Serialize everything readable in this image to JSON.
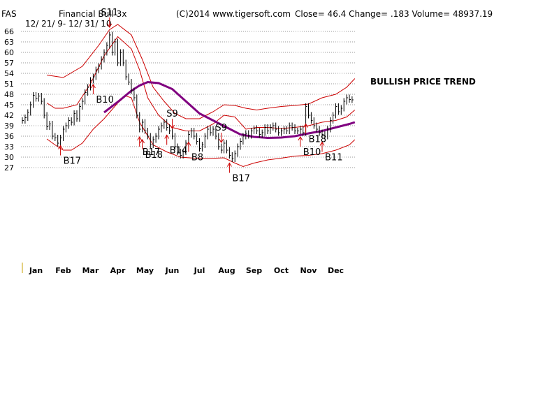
{
  "chart_data": {
    "type": "line",
    "title": "Financial Bull 3x",
    "symbol": "FAS",
    "date_range": "12/ 21/ 9- 12/ 31/ 10",
    "copyright": "(C)2014 www.tigersoft.com",
    "stats": "Close=  46.4  Change= .183 Volume= 48937.19",
    "trend_label": "BULLISH PRICE TREND",
    "ylim": [
      27,
      66
    ],
    "y_ticks": [
      {
        "v": 66,
        "label": "66"
      },
      {
        "v": 63,
        "label": "63"
      },
      {
        "v": 60,
        "label": "60"
      },
      {
        "v": 57,
        "label": "57"
      },
      {
        "v": 54,
        "label": "54"
      },
      {
        "v": 51,
        "label": "51"
      },
      {
        "v": 48,
        "label": "48"
      },
      {
        "v": 45,
        "label": "45"
      },
      {
        "v": 42,
        "label": "42"
      },
      {
        "v": 39,
        "label": "39"
      },
      {
        "v": 36,
        "label": "36"
      },
      {
        "v": 33,
        "label": "33"
      },
      {
        "v": 30,
        "label": "30"
      },
      {
        "v": 27,
        "label": "27"
      }
    ],
    "months": [
      {
        "label": "Jan",
        "x": 0.5
      },
      {
        "label": "Feb",
        "x": 1.5
      },
      {
        "label": "Mar",
        "x": 2.5
      },
      {
        "label": "Apr",
        "x": 3.5
      },
      {
        "label": "May",
        "x": 4.5
      },
      {
        "label": "Jun",
        "x": 5.5
      },
      {
        "label": "Jul",
        "x": 6.5
      },
      {
        "label": "Aug",
        "x": 7.5
      },
      {
        "label": "Sep",
        "x": 8.5
      },
      {
        "label": "Oct",
        "x": 9.5
      },
      {
        "label": "Nov",
        "x": 10.5
      },
      {
        "label": "Dec",
        "x": 11.5
      }
    ],
    "grid": true,
    "colors": {
      "price": "#000000",
      "band": "#cc0000",
      "ma": "#800080",
      "buy": "#cc0000",
      "sell": "#cc0000",
      "grid": "#999999"
    },
    "price": [
      [
        0,
        40.5
      ],
      [
        0.1,
        41.3
      ],
      [
        0.2,
        42.8
      ],
      [
        0.3,
        45
      ],
      [
        0.4,
        47.7
      ],
      [
        0.5,
        46.8
      ],
      [
        0.6,
        47.5
      ],
      [
        0.7,
        46
      ],
      [
        0.8,
        42
      ],
      [
        0.9,
        38.7
      ],
      [
        1.0,
        39.5
      ],
      [
        1.1,
        36
      ],
      [
        1.2,
        35.5
      ],
      [
        1.3,
        34
      ],
      [
        1.4,
        35.5
      ],
      [
        1.5,
        38
      ],
      [
        1.6,
        39
      ],
      [
        1.7,
        40.5
      ],
      [
        1.8,
        40
      ],
      [
        1.9,
        42.5
      ],
      [
        2.0,
        41
      ],
      [
        2.1,
        44.5
      ],
      [
        2.2,
        46
      ],
      [
        2.3,
        48.5
      ],
      [
        2.4,
        50
      ],
      [
        2.5,
        52
      ],
      [
        2.6,
        53
      ],
      [
        2.7,
        55
      ],
      [
        2.8,
        56
      ],
      [
        2.9,
        58
      ],
      [
        3.0,
        60
      ],
      [
        3.1,
        62
      ],
      [
        3.2,
        65
      ],
      [
        3.3,
        60
      ],
      [
        3.4,
        63
      ],
      [
        3.5,
        57
      ],
      [
        3.6,
        60
      ],
      [
        3.7,
        57
      ],
      [
        3.8,
        53
      ],
      [
        3.9,
        51.5
      ],
      [
        4.0,
        49
      ],
      [
        4.1,
        47
      ],
      [
        4.2,
        42
      ],
      [
        4.3,
        38
      ],
      [
        4.4,
        40
      ],
      [
        4.5,
        37.5
      ],
      [
        4.6,
        36
      ],
      [
        4.7,
        33.5
      ],
      [
        4.8,
        35
      ],
      [
        4.9,
        36
      ],
      [
        5.0,
        38
      ],
      [
        5.1,
        39
      ],
      [
        5.2,
        40
      ],
      [
        5.3,
        38.5
      ],
      [
        5.4,
        37.5
      ],
      [
        5.5,
        36
      ],
      [
        5.6,
        33
      ],
      [
        5.7,
        31.5
      ],
      [
        5.8,
        30.5
      ],
      [
        5.9,
        31.5
      ],
      [
        6.0,
        34
      ],
      [
        6.1,
        36.5
      ],
      [
        6.2,
        37.5
      ],
      [
        6.3,
        36
      ],
      [
        6.4,
        34.5
      ],
      [
        6.5,
        32.5
      ],
      [
        6.6,
        33.5
      ],
      [
        6.7,
        36
      ],
      [
        6.8,
        38
      ],
      [
        6.9,
        37
      ],
      [
        7.0,
        38
      ],
      [
        7.1,
        36
      ],
      [
        7.2,
        33
      ],
      [
        7.3,
        32
      ],
      [
        7.4,
        34
      ],
      [
        7.5,
        32
      ],
      [
        7.6,
        30.5
      ],
      [
        7.7,
        29.5
      ],
      [
        7.8,
        31
      ],
      [
        7.9,
        33
      ],
      [
        8.0,
        34.5
      ],
      [
        8.1,
        36
      ],
      [
        8.2,
        36.8
      ],
      [
        8.3,
        36.2
      ],
      [
        8.4,
        37.5
      ],
      [
        8.5,
        38.2
      ],
      [
        8.6,
        37.5
      ],
      [
        8.7,
        36.5
      ],
      [
        8.8,
        37
      ],
      [
        8.9,
        38.5
      ],
      [
        9.0,
        37.5
      ],
      [
        9.1,
        38.5
      ],
      [
        9.2,
        39
      ],
      [
        9.3,
        38
      ],
      [
        9.4,
        37
      ],
      [
        9.5,
        37.5
      ],
      [
        9.6,
        38
      ],
      [
        9.7,
        37.5
      ],
      [
        9.8,
        39
      ],
      [
        9.9,
        38.5
      ],
      [
        10.0,
        37.5
      ],
      [
        10.1,
        37.5
      ],
      [
        10.2,
        38
      ],
      [
        10.3,
        37
      ],
      [
        10.4,
        44.5
      ],
      [
        10.5,
        42
      ],
      [
        10.6,
        40.5
      ],
      [
        10.7,
        39
      ],
      [
        10.8,
        38
      ],
      [
        10.9,
        37
      ],
      [
        11.0,
        36.5
      ],
      [
        11.1,
        36
      ],
      [
        11.2,
        38
      ],
      [
        11.3,
        40.5
      ],
      [
        11.4,
        42
      ],
      [
        11.5,
        44.5
      ],
      [
        11.6,
        43
      ],
      [
        11.7,
        44
      ],
      [
        11.8,
        46
      ],
      [
        11.9,
        47
      ],
      [
        12.0,
        46.5
      ],
      [
        12.1,
        46.4
      ]
    ],
    "upper_band": [
      [
        0.9,
        53.5
      ],
      [
        1.5,
        52.8
      ],
      [
        2.2,
        56
      ],
      [
        2.8,
        62
      ],
      [
        3.2,
        66.5
      ],
      [
        3.5,
        68
      ],
      [
        4.0,
        65
      ],
      [
        4.4,
        58
      ],
      [
        4.8,
        50
      ],
      [
        5.2,
        46
      ],
      [
        5.6,
        42.5
      ],
      [
        6.0,
        41
      ],
      [
        6.5,
        41
      ],
      [
        7.0,
        43
      ],
      [
        7.4,
        45
      ],
      [
        7.8,
        44.8
      ],
      [
        8.2,
        44
      ],
      [
        8.6,
        43.5
      ],
      [
        9.0,
        44
      ],
      [
        9.5,
        44.5
      ],
      [
        10.0,
        44.8
      ],
      [
        10.5,
        45.2
      ],
      [
        11.0,
        47
      ],
      [
        11.5,
        48
      ],
      [
        11.9,
        50
      ],
      [
        12.2,
        52.5
      ]
    ],
    "mid_band": [
      [
        0.9,
        45.5
      ],
      [
        1.2,
        44
      ],
      [
        1.5,
        44
      ],
      [
        2.0,
        45
      ],
      [
        2.5,
        51
      ],
      [
        3.0,
        59
      ],
      [
        3.5,
        64.5
      ],
      [
        4.0,
        61
      ],
      [
        4.3,
        55
      ],
      [
        4.6,
        47
      ],
      [
        5.0,
        42
      ],
      [
        5.5,
        38.5
      ],
      [
        6.0,
        37.5
      ],
      [
        6.5,
        37.5
      ],
      [
        7.0,
        39.5
      ],
      [
        7.4,
        42
      ],
      [
        7.8,
        41.5
      ],
      [
        8.2,
        38
      ],
      [
        8.6,
        38.5
      ],
      [
        9.0,
        38.5
      ],
      [
        9.5,
        38.2
      ],
      [
        10.0,
        38.5
      ],
      [
        10.5,
        39
      ],
      [
        11.0,
        40
      ],
      [
        11.5,
        40.5
      ],
      [
        11.9,
        41.5
      ],
      [
        12.2,
        43.5
      ]
    ],
    "lower_band": [
      [
        0.9,
        35.2
      ],
      [
        1.2,
        33.5
      ],
      [
        1.5,
        32
      ],
      [
        1.8,
        32
      ],
      [
        2.2,
        34
      ],
      [
        2.6,
        38
      ],
      [
        3.0,
        41
      ],
      [
        3.5,
        45.5
      ],
      [
        3.8,
        47.5
      ],
      [
        4.0,
        47
      ],
      [
        4.3,
        40
      ],
      [
        4.8,
        33.5
      ],
      [
        5.3,
        31.5
      ],
      [
        5.8,
        30
      ],
      [
        6.3,
        29.7
      ],
      [
        6.8,
        29.6
      ],
      [
        7.4,
        29.8
      ],
      [
        7.8,
        28.3
      ],
      [
        8.1,
        27.3
      ],
      [
        8.5,
        28.3
      ],
      [
        9.0,
        29.2
      ],
      [
        9.5,
        29.7
      ],
      [
        10.0,
        30.3
      ],
      [
        10.5,
        30.5
      ],
      [
        11.0,
        31
      ],
      [
        11.5,
        32
      ],
      [
        12.0,
        33.5
      ],
      [
        12.2,
        35
      ]
    ],
    "ma": [
      [
        3.0,
        42.8
      ],
      [
        3.5,
        45.8
      ],
      [
        4.0,
        49
      ],
      [
        4.3,
        50.5
      ],
      [
        4.6,
        51.5
      ],
      [
        5.0,
        51.2
      ],
      [
        5.5,
        49.5
      ],
      [
        6.0,
        46
      ],
      [
        6.5,
        42.5
      ],
      [
        7.0,
        40.5
      ],
      [
        7.5,
        38.5
      ],
      [
        8.0,
        36.5
      ],
      [
        8.5,
        35.8
      ],
      [
        9.0,
        35.5
      ],
      [
        9.5,
        35.6
      ],
      [
        10.0,
        36
      ],
      [
        10.5,
        36.8
      ],
      [
        11.0,
        37.5
      ],
      [
        11.5,
        38.5
      ],
      [
        12.0,
        39.5
      ],
      [
        12.2,
        40
      ]
    ],
    "signals": [
      {
        "label": "S11",
        "x": 3.2,
        "dir": "down"
      },
      {
        "label": "B17",
        "x": 1.4,
        "dir": "up"
      },
      {
        "label": "B10",
        "x": 2.6,
        "dir": "up"
      },
      {
        "label": "B17",
        "x": 4.3,
        "dir": "up"
      },
      {
        "label": "B18",
        "x": 4.4,
        "dir": "up"
      },
      {
        "label": "B14",
        "x": 5.3,
        "dir": "up"
      },
      {
        "label": "B8",
        "x": 6.1,
        "dir": "up"
      },
      {
        "label": "S9",
        "x": 5.5,
        "dir": "down"
      },
      {
        "label": "S9",
        "x": 7.3,
        "dir": "down"
      },
      {
        "label": "B17",
        "x": 7.6,
        "dir": "up"
      },
      {
        "label": "B10",
        "x": 10.2,
        "dir": "up"
      },
      {
        "label": "B18",
        "x": 10.4,
        "dir": "up"
      },
      {
        "label": "B11",
        "x": 11.0,
        "dir": "up"
      }
    ]
  }
}
